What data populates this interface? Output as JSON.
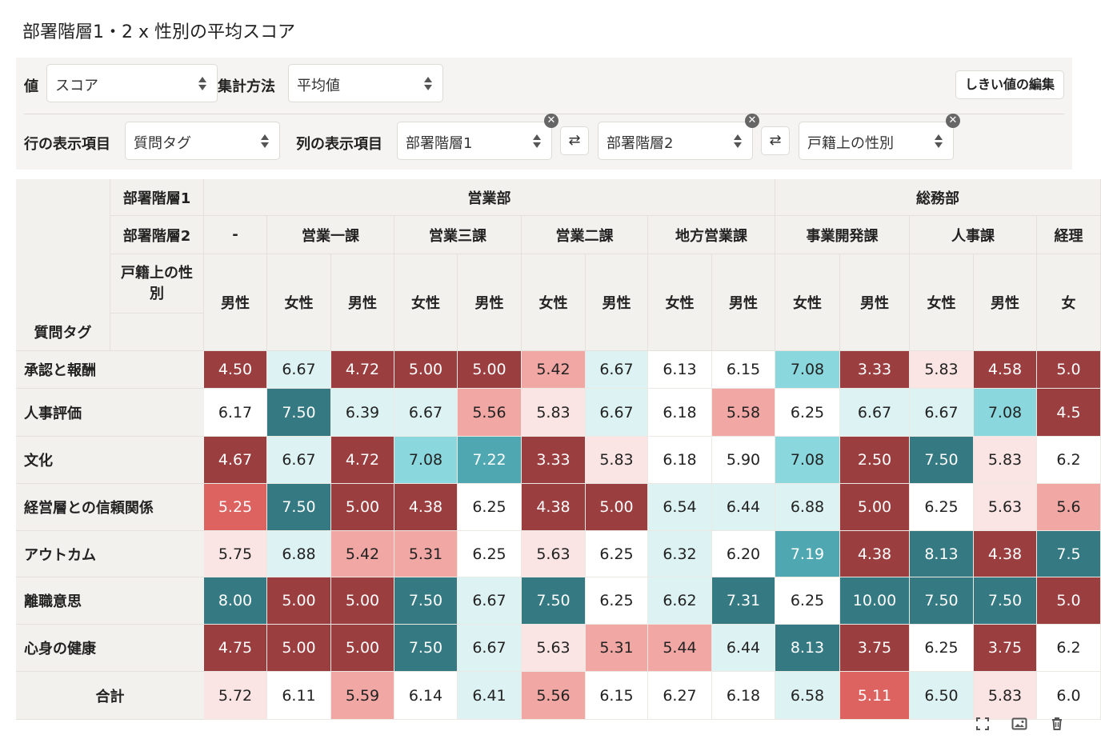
{
  "title": "部署階層1・2 x 性別の平均スコア",
  "controls": {
    "value_label": "値",
    "value_select": "スコア",
    "agg_label": "集計方法",
    "agg_select": "平均値",
    "edit_button": "しきい値の編集",
    "row_label": "行の表示項目",
    "row_select": "質問タグ",
    "col_label": "列の表示項目",
    "col_selects": [
      "部署階層1",
      "部署階層2",
      "戸籍上の性別"
    ],
    "remove_glyph": "✕",
    "swap_glyph": "⇄"
  },
  "table": {
    "header_labels": {
      "level1": "部署階層1",
      "level2": "部署階層2",
      "level3": "戸籍上の性別",
      "row_field": "質問タグ",
      "total": "合計"
    },
    "level1_groups": [
      {
        "label": "営業部",
        "span": 9
      },
      {
        "label": "総務部",
        "span": 5
      }
    ],
    "level2_groups": [
      {
        "label": "-",
        "span": 1
      },
      {
        "label": "営業一課",
        "span": 2
      },
      {
        "label": "営業三課",
        "span": 2
      },
      {
        "label": "営業二課",
        "span": 2
      },
      {
        "label": "地方営業課",
        "span": 2
      },
      {
        "label": "事業開発課",
        "span": 2
      },
      {
        "label": "人事課",
        "span": 2
      },
      {
        "label": "経理",
        "span": 1
      }
    ],
    "genders": [
      "男性",
      "女性",
      "男性",
      "女性",
      "男性",
      "女性",
      "男性",
      "女性",
      "男性",
      "女性",
      "男性",
      "女性",
      "男性",
      "女"
    ],
    "rows": [
      {
        "label": "承認と報酬",
        "values": [
          "4.50",
          "6.67",
          "4.72",
          "5.00",
          "5.00",
          "5.42",
          "6.67",
          "6.13",
          "6.15",
          "7.08",
          "3.33",
          "5.83",
          "4.58",
          "5.0"
        ]
      },
      {
        "label": "人事評価",
        "values": [
          "6.17",
          "7.50",
          "6.39",
          "6.67",
          "5.56",
          "5.83",
          "6.67",
          "6.18",
          "5.58",
          "6.25",
          "6.67",
          "6.67",
          "7.08",
          "4.5"
        ]
      },
      {
        "label": "文化",
        "values": [
          "4.67",
          "6.67",
          "4.72",
          "7.08",
          "7.22",
          "3.33",
          "5.83",
          "6.18",
          "5.90",
          "7.08",
          "2.50",
          "7.50",
          "5.83",
          "6.2"
        ]
      },
      {
        "label": "経営層との信頼関係",
        "values": [
          "5.25",
          "7.50",
          "5.00",
          "4.38",
          "6.25",
          "4.38",
          "5.00",
          "6.54",
          "6.44",
          "6.88",
          "5.00",
          "6.25",
          "5.63",
          "5.6"
        ]
      },
      {
        "label": "アウトカム",
        "values": [
          "5.75",
          "6.88",
          "5.42",
          "5.31",
          "6.25",
          "5.63",
          "6.25",
          "6.32",
          "6.20",
          "7.19",
          "4.38",
          "8.13",
          "4.38",
          "7.5"
        ]
      },
      {
        "label": "離職意思",
        "values": [
          "8.00",
          "5.00",
          "5.00",
          "7.50",
          "6.67",
          "7.50",
          "6.25",
          "6.62",
          "7.31",
          "6.25",
          "10.00",
          "7.50",
          "7.50",
          "5.0"
        ]
      },
      {
        "label": "心身の健康",
        "values": [
          "4.75",
          "5.00",
          "5.00",
          "7.50",
          "6.67",
          "5.63",
          "5.31",
          "5.44",
          "6.44",
          "8.13",
          "3.75",
          "6.25",
          "3.75",
          "6.2"
        ]
      }
    ],
    "total_values": [
      "5.72",
      "6.11",
      "5.59",
      "6.14",
      "6.41",
      "5.56",
      "6.15",
      "6.27",
      "6.18",
      "6.58",
      "5.11",
      "6.50",
      "5.83",
      "6.0"
    ]
  },
  "colors": {
    "dark_red": "#9b3e40",
    "red": "#dd6361",
    "pink": "#f1a7a4",
    "light_pink": "#fbe5e4",
    "white": "#ffffff",
    "light_teal": "#ddf2f2",
    "cyan": "#8ad7de",
    "teal": "#4fa8b1",
    "dark_teal": "#357a82"
  },
  "footer": {
    "icons": [
      "fullscreen-icon",
      "image-icon",
      "trash-icon"
    ]
  }
}
